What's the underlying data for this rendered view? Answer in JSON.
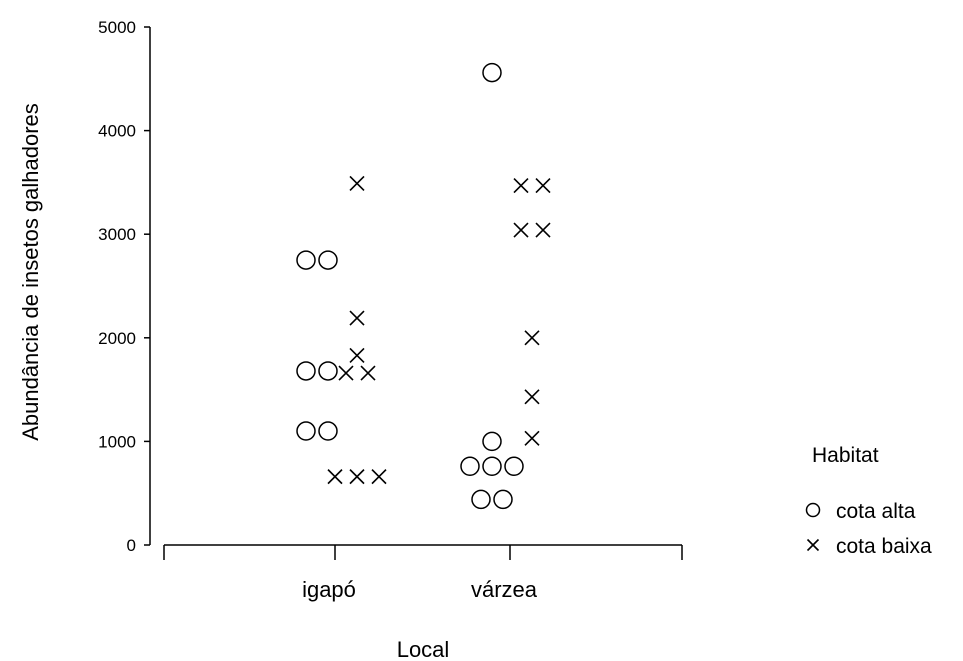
{
  "chart_data": {
    "type": "scatter",
    "xlabel": "Local",
    "ylabel": "Abundância de insetos galhadores",
    "categories": [
      "igapó",
      "várzea"
    ],
    "ylim": [
      0,
      5000
    ],
    "yticks": [
      0,
      1000,
      2000,
      3000,
      4000,
      5000
    ],
    "legend": {
      "title": "Habitat",
      "placement": "right",
      "items": [
        {
          "label": "cota alta",
          "marker": "circle"
        },
        {
          "label": "cota baixa",
          "marker": "x"
        }
      ]
    },
    "series": [
      {
        "name": "cota alta",
        "marker": "circle",
        "points": [
          {
            "x": "igapó",
            "y": 2750
          },
          {
            "x": "igapó",
            "y": 2750
          },
          {
            "x": "igapó",
            "y": 1680
          },
          {
            "x": "igapó",
            "y": 1680
          },
          {
            "x": "igapó",
            "y": 1100
          },
          {
            "x": "igapó",
            "y": 1100
          },
          {
            "x": "várzea",
            "y": 4560
          },
          {
            "x": "várzea",
            "y": 1000
          },
          {
            "x": "várzea",
            "y": 760
          },
          {
            "x": "várzea",
            "y": 760
          },
          {
            "x": "várzea",
            "y": 760
          },
          {
            "x": "várzea",
            "y": 440
          },
          {
            "x": "várzea",
            "y": 440
          }
        ]
      },
      {
        "name": "cota baixa",
        "marker": "x",
        "points": [
          {
            "x": "igapó",
            "y": 3490
          },
          {
            "x": "igapó",
            "y": 2190
          },
          {
            "x": "igapó",
            "y": 1830
          },
          {
            "x": "igapó",
            "y": 1660
          },
          {
            "x": "igapó",
            "y": 1660
          },
          {
            "x": "igapó",
            "y": 660
          },
          {
            "x": "igapó",
            "y": 660
          },
          {
            "x": "igapó",
            "y": 660
          },
          {
            "x": "várzea",
            "y": 3470
          },
          {
            "x": "várzea",
            "y": 3470
          },
          {
            "x": "várzea",
            "y": 3040
          },
          {
            "x": "várzea",
            "y": 3040
          },
          {
            "x": "várzea",
            "y": 2000
          },
          {
            "x": "várzea",
            "y": 1430
          },
          {
            "x": "várzea",
            "y": 1030
          }
        ]
      }
    ]
  }
}
